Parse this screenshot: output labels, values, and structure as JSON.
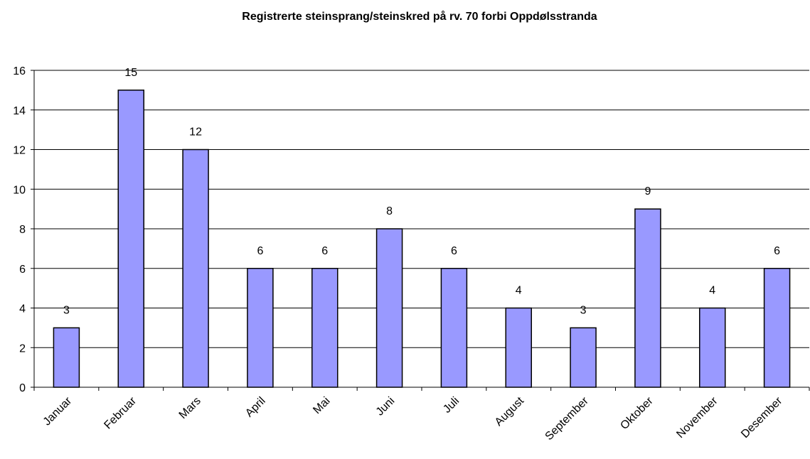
{
  "chart_data": {
    "type": "bar",
    "title": "Registrerte steinsprang/steinskred på rv. 70 forbi Oppdølsstranda",
    "categories": [
      "Januar",
      "Februar",
      "Mars",
      "April",
      "Mai",
      "Juni",
      "Juli",
      "August",
      "September",
      "Oktober",
      "November",
      "Desember"
    ],
    "values": [
      3,
      15,
      12,
      6,
      6,
      8,
      6,
      4,
      3,
      9,
      4,
      6
    ],
    "color": "#9999ff",
    "ylim": [
      0,
      16
    ],
    "yticks": [
      0,
      2,
      4,
      6,
      8,
      10,
      12,
      14,
      16
    ],
    "grid": true
  }
}
